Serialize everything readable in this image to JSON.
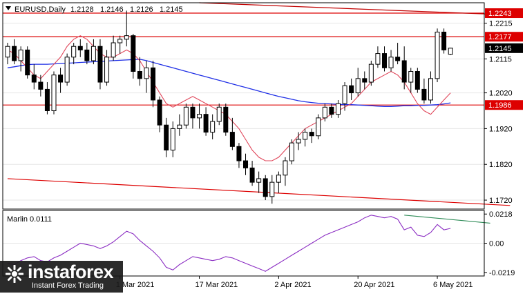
{
  "chart_data": {
    "type": "candlestick",
    "symbol_label": "EURUSD,Daily",
    "ohlc_readout": [
      "1.2128",
      "1.2146",
      "1.2126",
      "1.2145"
    ],
    "ylim": [
      1.1695,
      1.2272
    ],
    "price_ticks": [
      "1.2215",
      "1.2115",
      "1.2020",
      "1.1920",
      "1.1820",
      "1.1720"
    ],
    "x_labels": [
      "1 Mar 2021",
      "17 Mar 2021",
      "2 Apr 2021",
      "20 Apr 2021",
      "6 May 2021"
    ],
    "x_label_bars": [
      17,
      29,
      41,
      53,
      65
    ],
    "candles": [
      [
        1.212,
        1.216,
        1.21,
        1.215
      ],
      [
        1.215,
        1.217,
        1.21,
        1.211
      ],
      [
        1.211,
        1.215,
        1.208,
        1.214
      ],
      [
        1.214,
        1.215,
        1.206,
        1.207
      ],
      [
        1.207,
        1.21,
        1.203,
        1.205
      ],
      [
        1.205,
        1.207,
        1.201,
        1.203
      ],
      [
        1.203,
        1.205,
        1.196,
        1.197
      ],
      [
        1.197,
        1.208,
        1.196,
        1.207
      ],
      [
        1.207,
        1.209,
        1.202,
        1.205
      ],
      [
        1.205,
        1.213,
        1.204,
        1.212
      ],
      [
        1.212,
        1.216,
        1.21,
        1.215
      ],
      [
        1.215,
        1.217,
        1.212,
        1.214
      ],
      [
        1.214,
        1.216,
        1.21,
        1.211
      ],
      [
        1.211,
        1.217,
        1.21,
        1.215
      ],
      [
        1.215,
        1.217,
        1.203,
        1.205
      ],
      [
        1.205,
        1.214,
        1.204,
        1.212
      ],
      [
        1.212,
        1.218,
        1.211,
        1.216
      ],
      [
        1.216,
        1.218,
        1.213,
        1.217
      ],
      [
        1.217,
        1.225,
        1.215,
        1.218
      ],
      [
        1.218,
        1.2185,
        1.206,
        1.208
      ],
      [
        1.208,
        1.212,
        1.204,
        1.206
      ],
      [
        1.206,
        1.211,
        1.202,
        1.209
      ],
      [
        1.209,
        1.211,
        1.198,
        1.2
      ],
      [
        1.2,
        1.201,
        1.191,
        1.193
      ],
      [
        1.193,
        1.195,
        1.184,
        1.186
      ],
      [
        1.186,
        1.194,
        1.184,
        1.192
      ],
      [
        1.192,
        1.196,
        1.19,
        1.193
      ],
      [
        1.193,
        1.199,
        1.192,
        1.198
      ],
      [
        1.198,
        1.199,
        1.192,
        1.195
      ],
      [
        1.195,
        1.199,
        1.192,
        1.196
      ],
      [
        1.196,
        1.198,
        1.19,
        1.191
      ],
      [
        1.191,
        1.196,
        1.189,
        1.194
      ],
      [
        1.194,
        1.199,
        1.193,
        1.198
      ],
      [
        1.198,
        1.199,
        1.19,
        1.191
      ],
      [
        1.191,
        1.195,
        1.186,
        1.187
      ],
      [
        1.187,
        1.188,
        1.181,
        1.183
      ],
      [
        1.183,
        1.185,
        1.179,
        1.181
      ],
      [
        1.181,
        1.183,
        1.176,
        1.177
      ],
      [
        1.177,
        1.18,
        1.174,
        1.178
      ],
      [
        1.178,
        1.179,
        1.172,
        1.173
      ],
      [
        1.173,
        1.179,
        1.171,
        1.177
      ],
      [
        1.177,
        1.18,
        1.174,
        1.179
      ],
      [
        1.179,
        1.184,
        1.176,
        1.183
      ],
      [
        1.183,
        1.189,
        1.182,
        1.188
      ],
      [
        1.188,
        1.191,
        1.186,
        1.189
      ],
      [
        1.189,
        1.192,
        1.187,
        1.191
      ],
      [
        1.191,
        1.192,
        1.188,
        1.19
      ],
      [
        1.19,
        1.196,
        1.189,
        1.195
      ],
      [
        1.195,
        1.199,
        1.194,
        1.198
      ],
      [
        1.198,
        1.199,
        1.195,
        1.196
      ],
      [
        1.196,
        1.2,
        1.195,
        1.199
      ],
      [
        1.199,
        1.205,
        1.197,
        1.204
      ],
      [
        1.204,
        1.206,
        1.2,
        1.202
      ],
      [
        1.202,
        1.209,
        1.201,
        1.206
      ],
      [
        1.206,
        1.208,
        1.203,
        1.205
      ],
      [
        1.205,
        1.211,
        1.204,
        1.21
      ],
      [
        1.21,
        1.215,
        1.209,
        1.213
      ],
      [
        1.213,
        1.215,
        1.208,
        1.209
      ],
      [
        1.209,
        1.214,
        1.208,
        1.212
      ],
      [
        1.212,
        1.216,
        1.21,
        1.211
      ],
      [
        1.211,
        1.215,
        1.203,
        1.205
      ],
      [
        1.205,
        1.209,
        1.202,
        1.208
      ],
      [
        1.208,
        1.209,
        1.202,
        1.203
      ],
      [
        1.203,
        1.206,
        1.199,
        1.2
      ],
      [
        1.2,
        1.208,
        1.199,
        1.206
      ],
      [
        1.206,
        1.22,
        1.205,
        1.219
      ],
      [
        1.219,
        1.22,
        1.213,
        1.214
      ],
      [
        1.2128,
        1.2146,
        1.2126,
        1.2145
      ]
    ],
    "ma_fast": [
      1.214,
      1.213,
      1.211,
      1.209,
      1.207,
      1.206,
      1.208,
      1.21,
      1.212,
      1.215,
      1.217,
      1.218,
      1.217,
      1.215,
      1.213,
      1.212,
      1.212,
      1.213,
      1.214,
      1.213,
      1.211,
      1.208,
      1.205,
      1.202,
      1.199,
      1.198,
      1.199,
      1.2,
      1.201,
      1.2,
      1.199,
      1.198,
      1.197,
      1.196,
      1.194,
      1.192,
      1.189,
      1.186,
      1.184,
      1.183,
      1.183,
      1.184,
      1.186,
      1.188,
      1.19,
      1.192,
      1.193,
      1.194,
      1.195,
      1.196,
      1.197,
      1.198,
      1.199,
      1.201,
      1.203,
      1.205,
      1.206,
      1.207,
      1.208,
      1.207,
      1.205,
      1.202,
      1.199,
      1.197,
      1.196,
      1.198,
      1.2,
      1.202
    ],
    "ma_slow": [
      1.209,
      1.2093,
      1.2096,
      1.2099,
      1.21,
      1.21,
      1.21,
      1.2101,
      1.2102,
      1.2103,
      1.2104,
      1.2105,
      1.2106,
      1.2107,
      1.2108,
      1.2109,
      1.211,
      1.2111,
      1.2112,
      1.2113,
      1.2114,
      1.211,
      1.2105,
      1.21,
      1.2095,
      1.209,
      1.2085,
      1.208,
      1.2075,
      1.207,
      1.2065,
      1.206,
      1.2055,
      1.205,
      1.2045,
      1.204,
      1.2035,
      1.203,
      1.2025,
      1.202,
      1.2015,
      1.201,
      1.2006,
      1.2002,
      1.1998,
      1.1995,
      1.1993,
      1.1991,
      1.199,
      1.1989,
      1.1988,
      1.1987,
      1.1987,
      1.1986,
      1.1985,
      1.1984,
      1.1983,
      1.1982,
      1.1982,
      1.1983,
      1.1984,
      1.1984,
      1.1985,
      1.1985,
      1.1986,
      1.1987,
      1.1989,
      1.1992
    ],
    "horizontal_levels": [
      {
        "price": 1.2243,
        "label": "1.2243",
        "color": "#dd0000"
      },
      {
        "price": 1.2177,
        "label": "1.2177",
        "color": "#dd0000"
      },
      {
        "price": 1.1986,
        "label": "1.1986",
        "color": "#dd0000"
      }
    ],
    "current_price_label": "1.2145",
    "trendlines": [
      {
        "from": [
          29,
          1.2272
        ],
        "to": [
          76,
          1.2238
        ],
        "color": "#c00000"
      },
      {
        "from": [
          0,
          1.178
        ],
        "to": [
          76,
          1.1705
        ],
        "color": "#dd0000"
      }
    ],
    "oscillator": {
      "label": "Marlin 0.0111",
      "ylim": [
        -0.0245,
        0.0245
      ],
      "ticks": [
        "0.0218",
        "0.00",
        "-0.0219"
      ],
      "color": "#8a2bc2",
      "values": [
        -0.015,
        -0.016,
        -0.013,
        -0.011,
        -0.01,
        -0.013,
        -0.014,
        -0.011,
        -0.009,
        -0.006,
        -0.003,
        0.0,
        -0.001,
        -0.002,
        -0.004,
        -0.002,
        0.001,
        0.005,
        0.009,
        0.007,
        0.002,
        -0.002,
        -0.006,
        -0.011,
        -0.018,
        -0.02,
        -0.016,
        -0.013,
        -0.01,
        -0.011,
        -0.012,
        -0.013,
        -0.012,
        -0.01,
        -0.011,
        -0.013,
        -0.015,
        -0.017,
        -0.019,
        -0.021,
        -0.018,
        -0.015,
        -0.012,
        -0.009,
        -0.006,
        -0.003,
        0.0,
        0.003,
        0.006,
        0.008,
        0.01,
        0.012,
        0.014,
        0.016,
        0.019,
        0.021,
        0.02,
        0.019,
        0.02,
        0.018,
        0.01,
        0.012,
        0.006,
        0.005,
        0.008,
        0.014,
        0.01,
        0.0111
      ]
    },
    "divergence_line": {
      "from": [
        60,
        0.021
      ],
      "to": [
        73,
        0.015
      ],
      "color": "#2e8b57"
    },
    "watermark": {
      "name": "instaforex",
      "tagline": "Instant Forex Trading"
    }
  }
}
